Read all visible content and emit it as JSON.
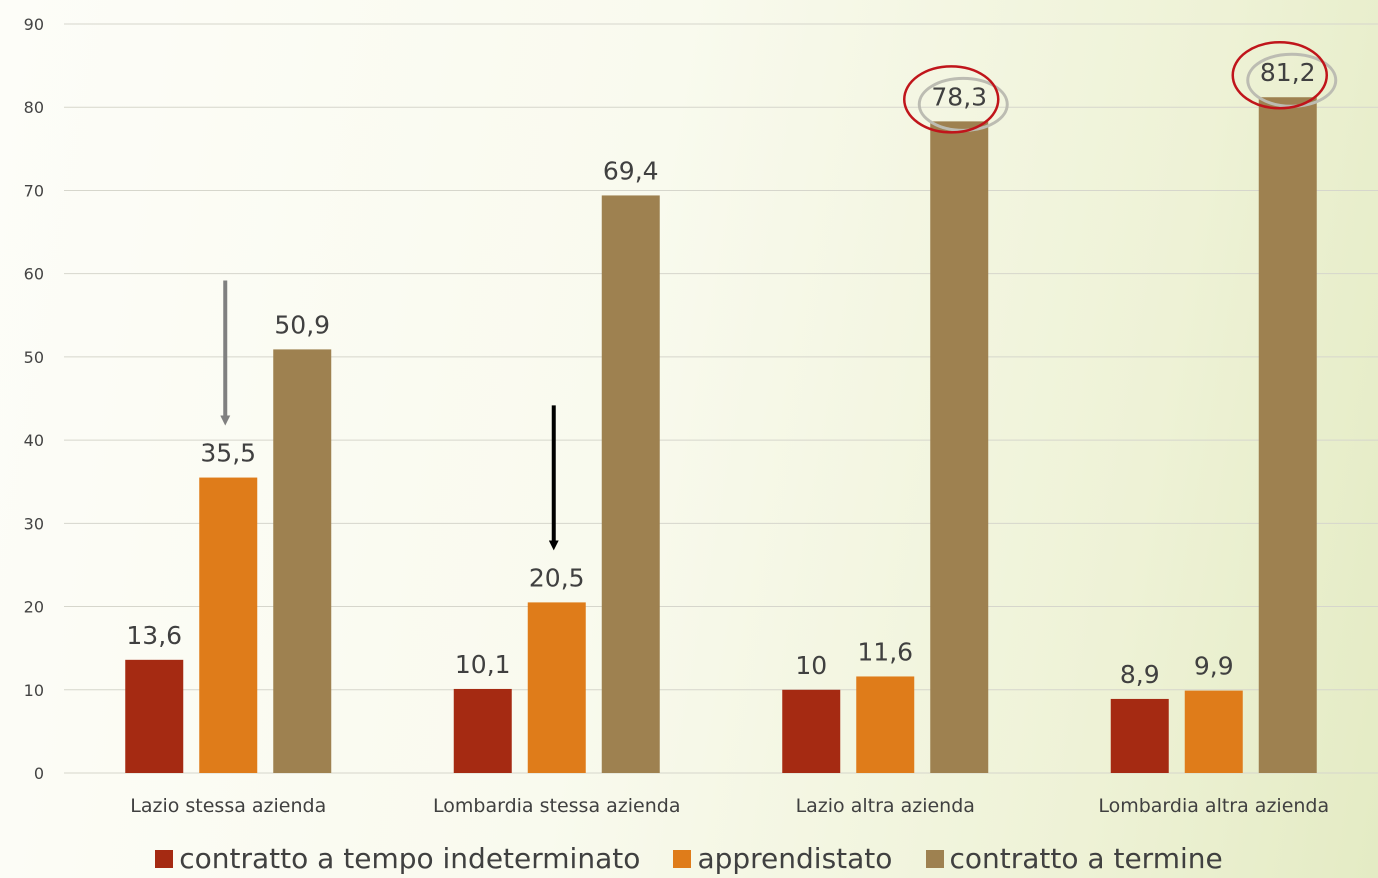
{
  "chart_data": {
    "type": "bar",
    "categories": [
      "Lazio stessa azienda",
      "Lombardia stessa azienda",
      "Lazio altra azienda",
      "Lombardia altra azienda"
    ],
    "series": [
      {
        "name": "contratto a tempo indeterminato",
        "color": "#a52a12",
        "values": [
          13.6,
          10.1,
          10,
          8.9
        ],
        "labels": [
          "13,6",
          "10,1",
          "10",
          "8,9"
        ]
      },
      {
        "name": "apprendistato",
        "color": "#df7c1a",
        "values": [
          35.5,
          20.5,
          11.6,
          9.9
        ],
        "labels": [
          "35,5",
          "20,5",
          "11,6",
          "9,9"
        ]
      },
      {
        "name": "contratto a termine",
        "color": "#9e8150",
        "values": [
          50.9,
          69.4,
          78.3,
          81.2
        ],
        "labels": [
          "50,9",
          "69,4",
          "78,3",
          "81,2"
        ]
      }
    ],
    "ylim": [
      0,
      90
    ],
    "yticks": [
      0,
      10,
      20,
      30,
      40,
      50,
      60,
      70,
      80,
      90
    ],
    "grid": true,
    "legend_position": "bottom",
    "annotations": {
      "arrows": [
        {
          "target_category": 0,
          "target_series": 1,
          "color": "#808080"
        },
        {
          "target_category": 1,
          "target_series": 1,
          "color": "#000000"
        }
      ],
      "circles": [
        {
          "target_category": 2,
          "target_series": 2,
          "color": "#c0151b"
        },
        {
          "target_category": 3,
          "target_series": 2,
          "color": "#c0151b"
        }
      ]
    }
  }
}
